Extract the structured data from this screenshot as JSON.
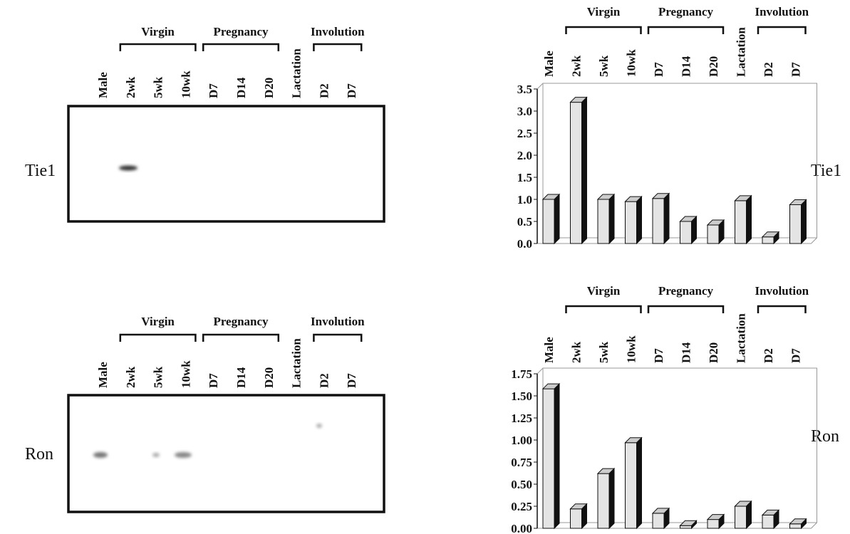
{
  "blots": [
    {
      "label": "Tie1",
      "lanes": [
        "Male",
        "2wk",
        "5wk",
        "10wk",
        "D7",
        "D14",
        "D20",
        "Lactation",
        "D2",
        "D7"
      ],
      "groups": [
        "Virgin",
        "Pregnancy",
        "Involution"
      ]
    },
    {
      "label": "Ron",
      "lanes": [
        "Male",
        "2wk",
        "5wk",
        "10wk",
        "D7",
        "D14",
        "D20",
        "Lactation",
        "D2",
        "D7"
      ],
      "groups": [
        "Virgin",
        "Pregnancy",
        "Involution"
      ]
    }
  ],
  "chart_data": [
    {
      "type": "bar",
      "label": "Tie1",
      "categories": [
        "Male",
        "2wk",
        "5wk",
        "10wk",
        "D7",
        "D14",
        "D20",
        "Lactation",
        "D2",
        "D7"
      ],
      "groups": [
        "Virgin",
        "Pregnancy",
        "Involution"
      ],
      "values": [
        1.0,
        3.2,
        1.0,
        0.95,
        1.02,
        0.5,
        0.42,
        0.97,
        0.15,
        0.88
      ],
      "color": "#e4e4e4",
      "ylim": [
        0,
        3.5
      ],
      "yticks": [
        {
          "value": 0,
          "label": "0.0"
        },
        0.5,
        {
          "value": 1,
          "label": "1.0"
        },
        1.5,
        {
          "value": 2,
          "label": "2.0"
        },
        2.5,
        {
          "value": 3,
          "label": "3.0"
        },
        3.5
      ]
    },
    {
      "type": "bar",
      "label": "Ron",
      "categories": [
        "Male",
        "2wk",
        "5wk",
        "10wk",
        "D7",
        "D14",
        "D20",
        "Lactation",
        "D2",
        "D7"
      ],
      "groups": [
        "Virgin",
        "Pregnancy",
        "Involution"
      ],
      "values": [
        1.58,
        0.22,
        0.62,
        0.97,
        0.17,
        0.03,
        0.1,
        0.25,
        0.15,
        0.05
      ],
      "color": "#e4e4e4",
      "ylim": [
        0,
        1.75
      ],
      "yticks": [
        {
          "value": 0,
          "label": "0.00"
        },
        0.25,
        {
          "value": 0.5,
          "label": "0.50"
        },
        0.75,
        {
          "value": 1,
          "label": "1.00"
        },
        1.25,
        {
          "value": 1.5,
          "label": "1.50"
        },
        1.75
      ]
    }
  ]
}
